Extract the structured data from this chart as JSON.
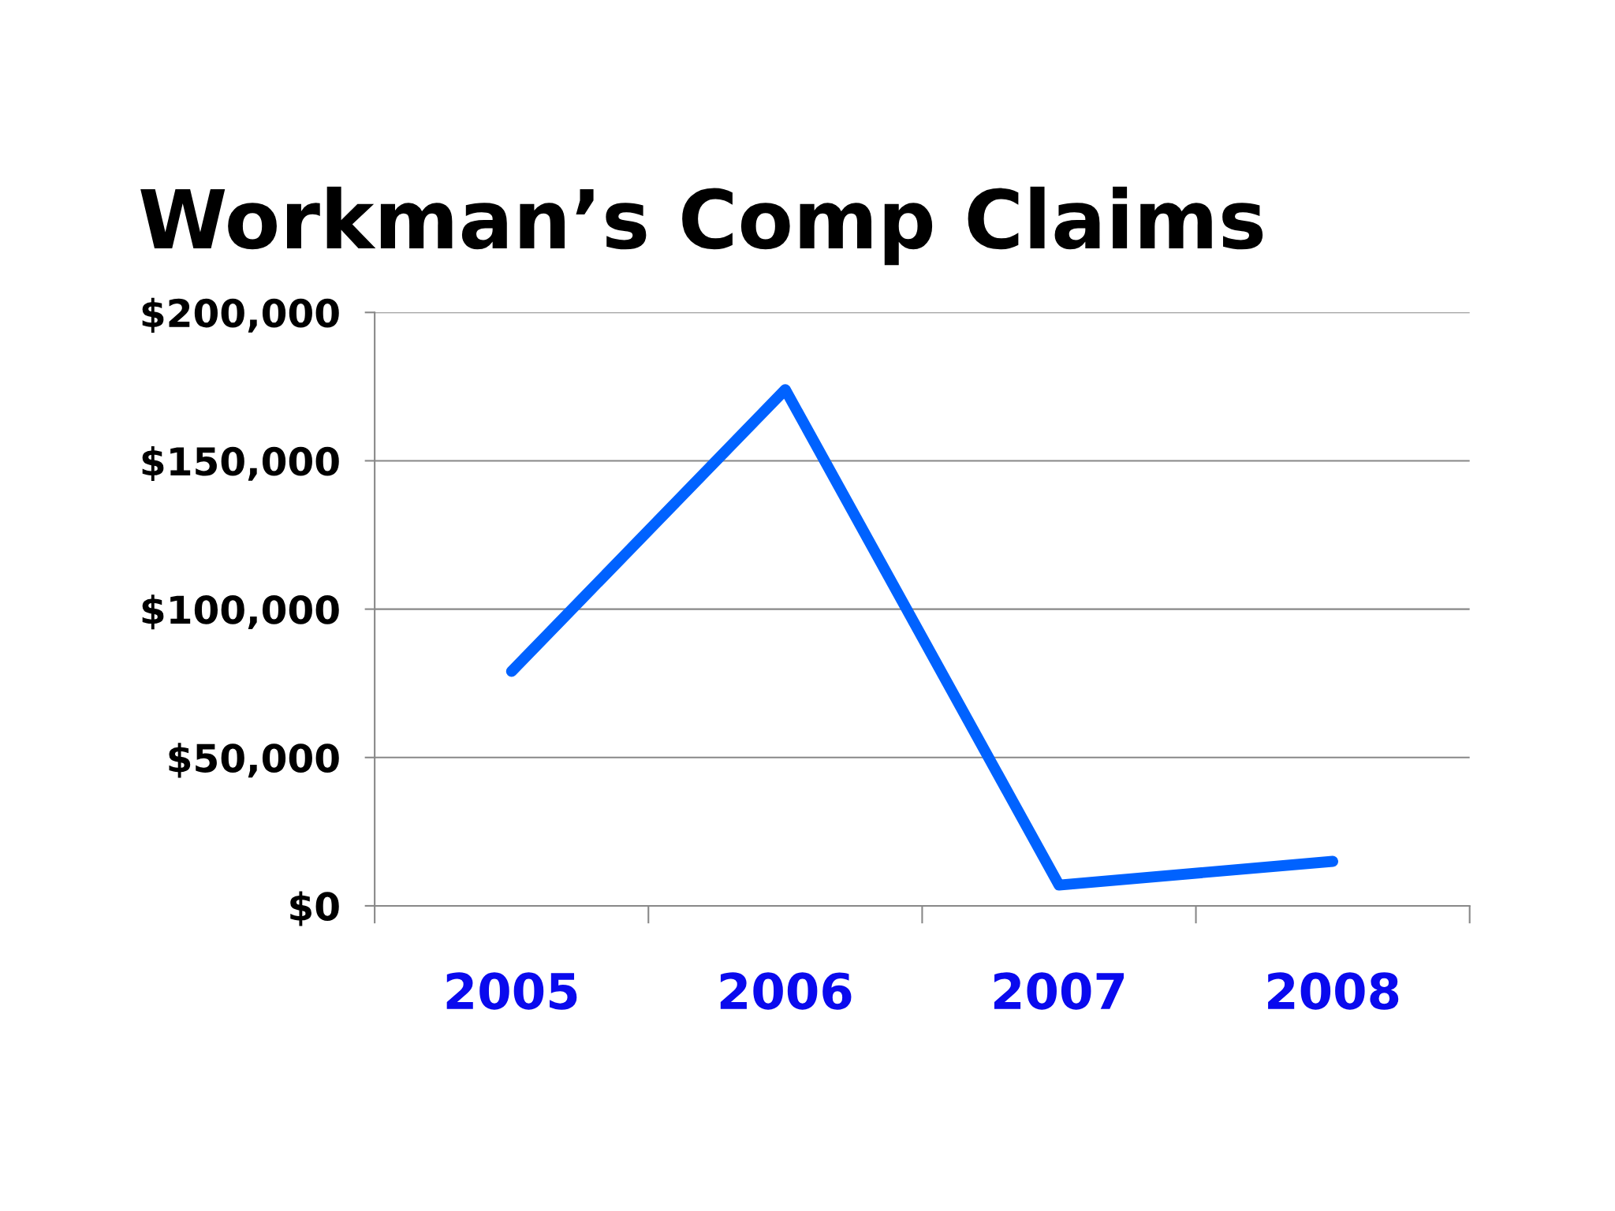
{
  "chart_data": {
    "type": "line",
    "title": "Workman’s Comp Claims",
    "categories": [
      "2005",
      "2006",
      "2007",
      "2008"
    ],
    "series": [
      {
        "color": "#0062ff",
        "values": [
          79000,
          174000,
          7000,
          15000
        ]
      }
    ],
    "ylim": [
      0,
      200000
    ],
    "yticks": [
      {
        "value": 0,
        "label": "$0"
      },
      {
        "value": 50000,
        "label": "$50,000"
      },
      {
        "value": 100000,
        "label": "$100,000"
      },
      {
        "value": 150000,
        "label": "$150,000"
      },
      {
        "value": 200000,
        "label": "$200,000"
      }
    ],
    "grid": "y",
    "marker": "none",
    "line_style": "solid"
  }
}
